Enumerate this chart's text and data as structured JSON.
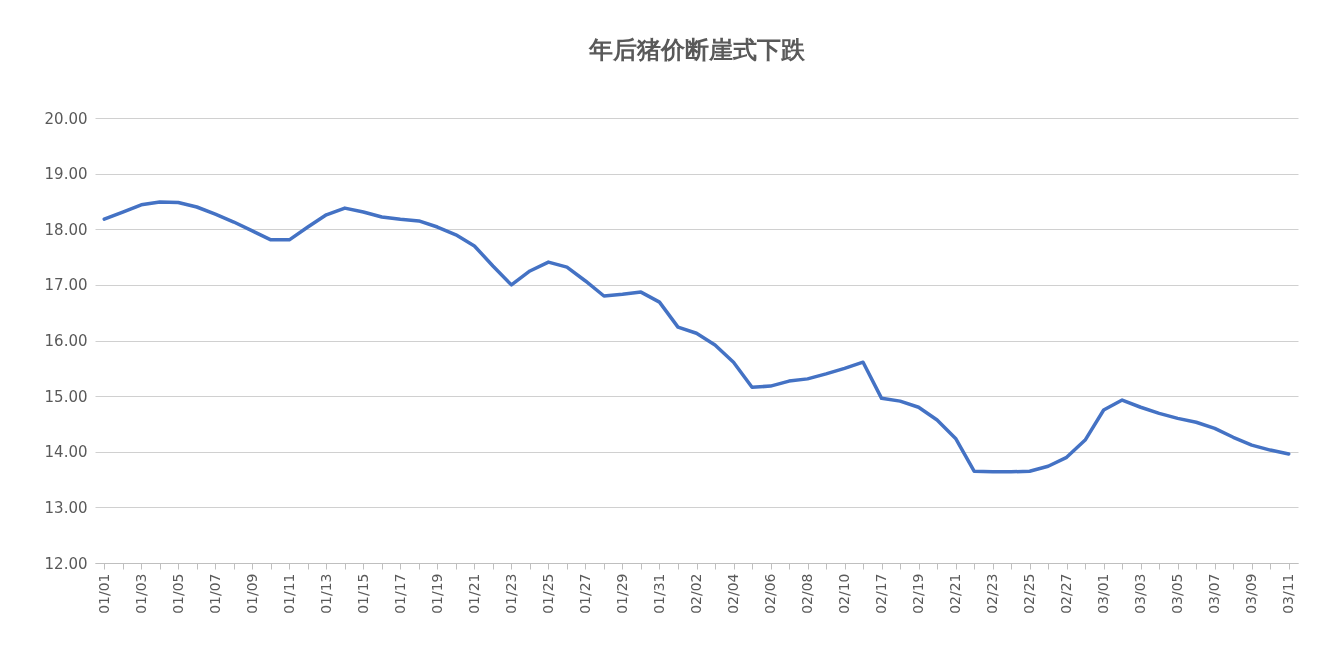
{
  "chart_data": {
    "type": "line",
    "title": "年后猪价断崖式下跌",
    "categories": [
      "01/01",
      null,
      "01/03",
      null,
      "01/05",
      null,
      "01/07",
      null,
      "01/09",
      null,
      "01/11",
      null,
      "01/13",
      null,
      "01/15",
      null,
      "01/17",
      null,
      "01/19",
      null,
      "01/21",
      null,
      "01/23",
      null,
      "01/25",
      null,
      "01/27",
      null,
      "01/29",
      null,
      "01/31",
      null,
      "02/02",
      null,
      "02/04",
      null,
      "02/06",
      null,
      "02/08",
      null,
      "02/10",
      null,
      "02/17",
      null,
      "02/19",
      null,
      "02/21",
      null,
      "02/23",
      null,
      "02/25",
      null,
      "02/27",
      null,
      "03/01",
      null,
      "03/03",
      null,
      "03/05",
      null,
      "03/07",
      null,
      "03/09",
      null,
      "03/11"
    ],
    "series": [
      {
        "color": "#4472c4",
        "values": [
          18.18,
          18.31,
          18.44,
          18.49,
          18.48,
          18.4,
          18.27,
          18.13,
          17.97,
          17.81,
          17.81,
          18.04,
          18.26,
          18.38,
          18.31,
          18.22,
          18.18,
          18.15,
          18.04,
          17.9,
          17.7,
          17.34,
          17.0,
          17.25,
          17.41,
          17.32,
          17.07,
          16.8,
          16.83,
          16.87,
          16.69,
          16.24,
          16.13,
          15.92,
          15.61,
          15.16,
          15.18,
          15.27,
          15.31,
          15.4,
          15.5,
          15.61,
          14.96,
          14.91,
          14.8,
          14.57,
          14.24,
          13.65,
          13.64,
          13.64,
          13.65,
          13.74,
          13.9,
          14.21,
          14.75,
          14.93,
          14.8,
          14.69,
          14.6,
          14.53,
          14.42,
          14.26,
          14.12,
          14.03,
          13.96
        ]
      }
    ],
    "ylim": [
      12,
      20
    ],
    "yticks": [
      {
        "value": 12,
        "label": "12.00"
      },
      {
        "value": 13,
        "label": "13.00"
      },
      {
        "value": 14,
        "label": "14.00"
      },
      {
        "value": 15,
        "label": "15.00"
      },
      {
        "value": 16,
        "label": "16.00"
      },
      {
        "value": 17,
        "label": "17.00"
      },
      {
        "value": 18,
        "label": "18.00"
      },
      {
        "value": 19,
        "label": "19.00"
      },
      {
        "value": 20,
        "label": "20.00"
      }
    ],
    "grid": "y",
    "marker": "none",
    "line_style": "solid"
  }
}
